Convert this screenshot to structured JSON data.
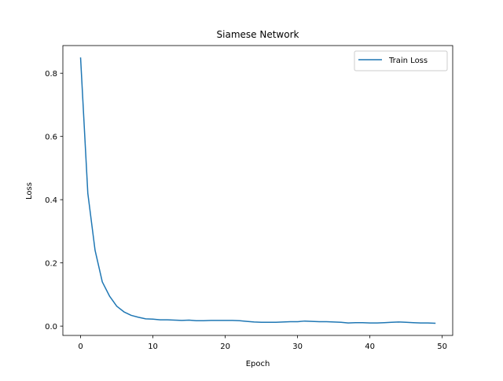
{
  "chart_data": {
    "type": "line",
    "title": "Siamese Network",
    "xlabel": "Epoch",
    "ylabel": "Loss",
    "xlim": [
      -2.45,
      51.45
    ],
    "ylim": [
      -0.0295,
      0.8875
    ],
    "xticks": [
      0,
      10,
      20,
      30,
      40,
      50
    ],
    "xtick_labels": [
      "0",
      "10",
      "20",
      "30",
      "40",
      "50"
    ],
    "yticks": [
      0.0,
      0.2,
      0.4,
      0.6,
      0.8
    ],
    "ytick_labels": [
      "0.0",
      "0.2",
      "0.4",
      "0.6",
      "0.8"
    ],
    "grid": false,
    "legend_position": "top-right",
    "series": [
      {
        "name": "Train Loss",
        "color": "#1f77b4",
        "x": [
          0,
          1,
          2,
          3,
          4,
          5,
          6,
          7,
          8,
          9,
          10,
          11,
          12,
          13,
          14,
          15,
          16,
          17,
          18,
          19,
          20,
          21,
          22,
          23,
          24,
          25,
          26,
          27,
          28,
          29,
          30,
          31,
          32,
          33,
          34,
          35,
          36,
          37,
          38,
          39,
          40,
          41,
          42,
          43,
          44,
          45,
          46,
          47,
          48,
          49
        ],
        "y": [
          0.848,
          0.42,
          0.24,
          0.14,
          0.095,
          0.063,
          0.045,
          0.034,
          0.028,
          0.023,
          0.022,
          0.02,
          0.02,
          0.019,
          0.018,
          0.019,
          0.017,
          0.017,
          0.018,
          0.018,
          0.018,
          0.018,
          0.017,
          0.015,
          0.013,
          0.012,
          0.012,
          0.012,
          0.013,
          0.014,
          0.014,
          0.016,
          0.015,
          0.014,
          0.014,
          0.013,
          0.012,
          0.01,
          0.011,
          0.011,
          0.01,
          0.01,
          0.011,
          0.012,
          0.013,
          0.012,
          0.011,
          0.01,
          0.01,
          0.009
        ]
      }
    ]
  }
}
